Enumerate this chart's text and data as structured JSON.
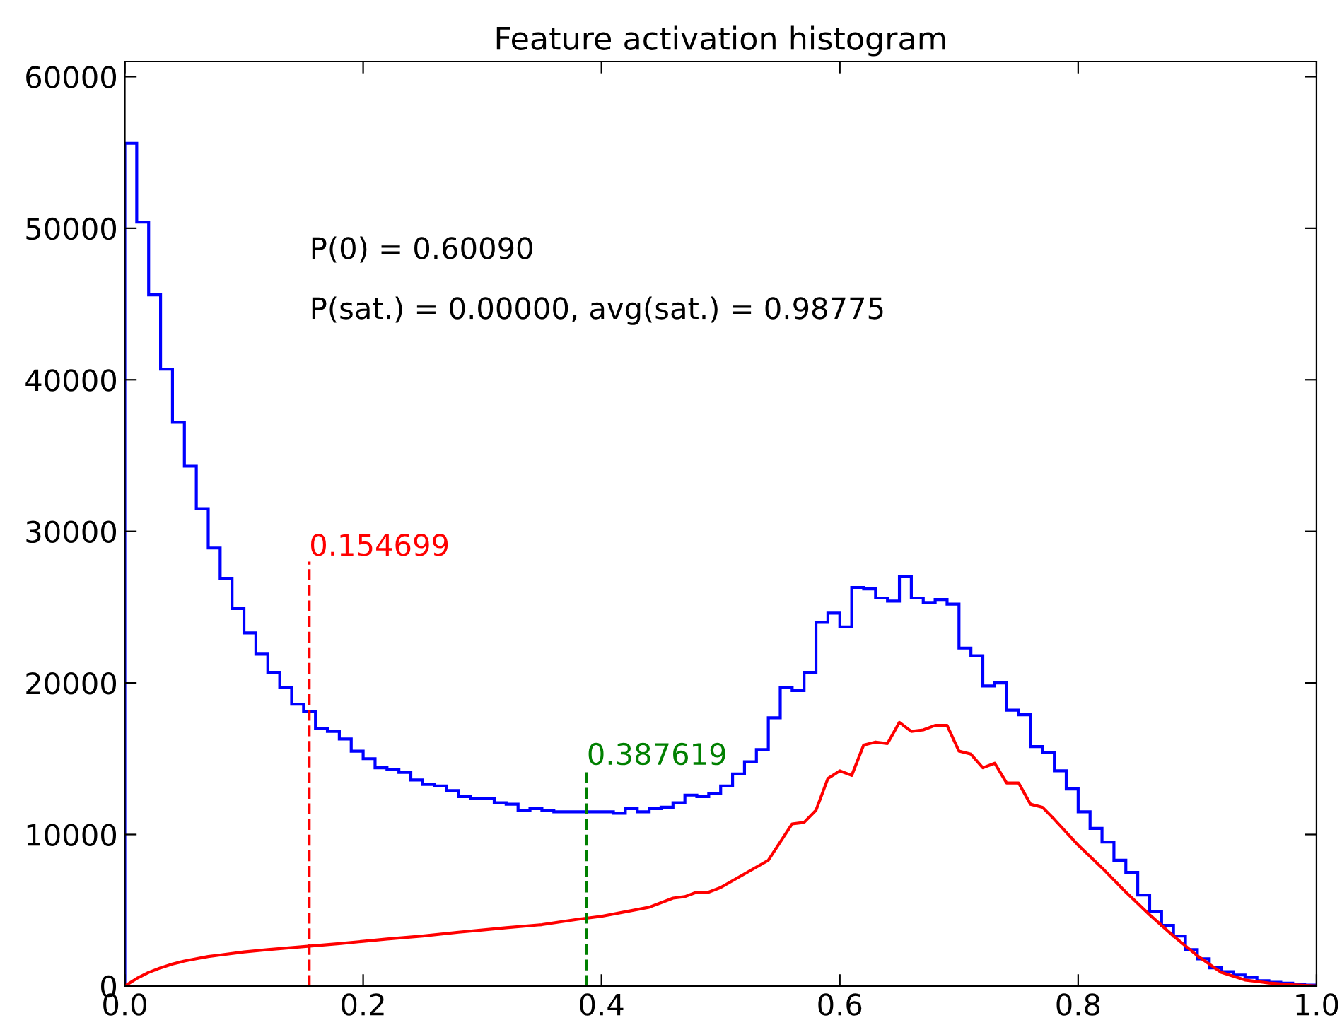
{
  "chart_data": {
    "type": "histogram",
    "title": "Feature activation histogram",
    "bins": [
      0,
      0.01,
      0.02,
      0.03,
      0.04,
      0.05,
      0.06,
      0.07,
      0.08,
      0.09,
      0.1,
      0.11,
      0.12,
      0.13,
      0.14,
      0.15,
      0.16,
      0.17,
      0.18,
      0.19,
      0.2,
      0.21,
      0.22,
      0.23,
      0.24,
      0.25,
      0.26,
      0.27,
      0.28,
      0.29,
      0.3,
      0.31,
      0.32,
      0.33,
      0.34,
      0.35,
      0.36,
      0.37,
      0.38,
      0.39,
      0.4,
      0.41,
      0.42,
      0.43,
      0.44,
      0.45,
      0.46,
      0.47,
      0.48,
      0.49,
      0.5,
      0.51,
      0.52,
      0.53,
      0.54,
      0.55,
      0.56,
      0.57,
      0.58,
      0.59,
      0.6,
      0.61,
      0.62,
      0.63,
      0.64,
      0.65,
      0.66,
      0.67,
      0.68,
      0.69,
      0.7,
      0.71,
      0.72,
      0.73,
      0.74,
      0.75,
      0.76,
      0.77,
      0.78,
      0.79,
      0.8,
      0.81,
      0.82,
      0.83,
      0.84,
      0.85,
      0.86,
      0.87,
      0.88,
      0.89,
      0.9,
      0.91,
      0.92,
      0.93,
      0.94,
      0.95,
      0.96,
      0.97,
      0.98,
      0.99,
      1.0
    ],
    "series": [
      {
        "color": "#0000ff",
        "values": [
          55600,
          50400,
          45600,
          40700,
          37200,
          34300,
          31500,
          28900,
          26900,
          24900,
          23300,
          21900,
          20700,
          19700,
          18600,
          18100,
          17000,
          16800,
          16300,
          15500,
          15000,
          14400,
          14300,
          14100,
          13600,
          13300,
          13200,
          12900,
          12500,
          12400,
          12400,
          12100,
          12000,
          11600,
          11700,
          11600,
          11500,
          11500,
          11500,
          11500,
          11500,
          11400,
          11700,
          11500,
          11700,
          11800,
          12100,
          12600,
          12500,
          12700,
          13200,
          14000,
          14800,
          15600,
          17700,
          19700,
          19500,
          20700,
          24000,
          24600,
          23700,
          26300,
          26200,
          25600,
          25400,
          27000,
          25600,
          25300,
          25500,
          25200,
          22300,
          21800,
          19800,
          20000,
          18200,
          17900,
          15800,
          15400,
          14200,
          13000,
          11500,
          10400,
          9500,
          8300,
          7500,
          6000,
          4900,
          4000,
          3300,
          2400,
          1800,
          1200,
          950,
          730,
          570,
          350,
          250,
          190,
          95,
          60
        ]
      },
      {
        "type": "line",
        "color": "#ff0000",
        "x": [
          0,
          0.01,
          0.02,
          0.03,
          0.04,
          0.05,
          0.06,
          0.07,
          0.08,
          0.1,
          0.12,
          0.15,
          0.18,
          0.2,
          0.22,
          0.25,
          0.28,
          0.3,
          0.32,
          0.35,
          0.38,
          0.4,
          0.42,
          0.44,
          0.45,
          0.46,
          0.47,
          0.48,
          0.49,
          0.5,
          0.52,
          0.54,
          0.56,
          0.57,
          0.58,
          0.59,
          0.6,
          0.61,
          0.62,
          0.63,
          0.64,
          0.65,
          0.66,
          0.67,
          0.68,
          0.69,
          0.7,
          0.71,
          0.72,
          0.73,
          0.74,
          0.75,
          0.76,
          0.77,
          0.78,
          0.8,
          0.82,
          0.84,
          0.86,
          0.88,
          0.9,
          0.92,
          0.94,
          0.96,
          0.98,
          1.0
        ],
        "values": [
          0,
          500,
          900,
          1200,
          1450,
          1650,
          1800,
          1950,
          2050,
          2250,
          2400,
          2600,
          2800,
          2950,
          3100,
          3300,
          3550,
          3700,
          3850,
          4050,
          4400,
          4600,
          4900,
          5200,
          5500,
          5800,
          5900,
          6200,
          6200,
          6500,
          7400,
          8300,
          10700,
          10800,
          11600,
          13700,
          14200,
          13900,
          15900,
          16100,
          16000,
          17400,
          16800,
          16900,
          17200,
          17200,
          15500,
          15300,
          14400,
          14700,
          13400,
          13400,
          12000,
          11800,
          11000,
          9300,
          7800,
          6200,
          4700,
          3300,
          2000,
          900,
          400,
          200,
          80,
          0
        ]
      }
    ],
    "xlim": [
      0,
      1.0
    ],
    "xticks": [
      {
        "value": 0,
        "label": "0.0"
      },
      {
        "value": 0.2,
        "label": "0.2"
      },
      {
        "value": 0.4,
        "label": "0.4"
      },
      {
        "value": 0.6,
        "label": "0.6"
      },
      {
        "value": 0.8,
        "label": "0.8"
      },
      {
        "value": 1.0,
        "label": "1.0"
      }
    ],
    "ylim": [
      0,
      61000
    ],
    "yticks": [
      0,
      10000,
      20000,
      30000,
      40000,
      50000,
      60000
    ],
    "ref_lines": [
      {
        "axis": "x",
        "value": 0.154699,
        "color": "#ff0000",
        "line_style": "dashed"
      },
      {
        "axis": "x",
        "value": 0.387619,
        "color": "#008000",
        "line_style": "dashed"
      }
    ],
    "annotations": [
      {
        "text": "0.154699",
        "x": 0.154699,
        "y": 28000
      },
      {
        "text": "0.387619",
        "x": 0.387619,
        "y": 14200
      },
      "P(0) = 0.60090",
      "P(sat.) = 0.00000, avg(sat.) = 0.98775"
    ],
    "grid": false
  }
}
